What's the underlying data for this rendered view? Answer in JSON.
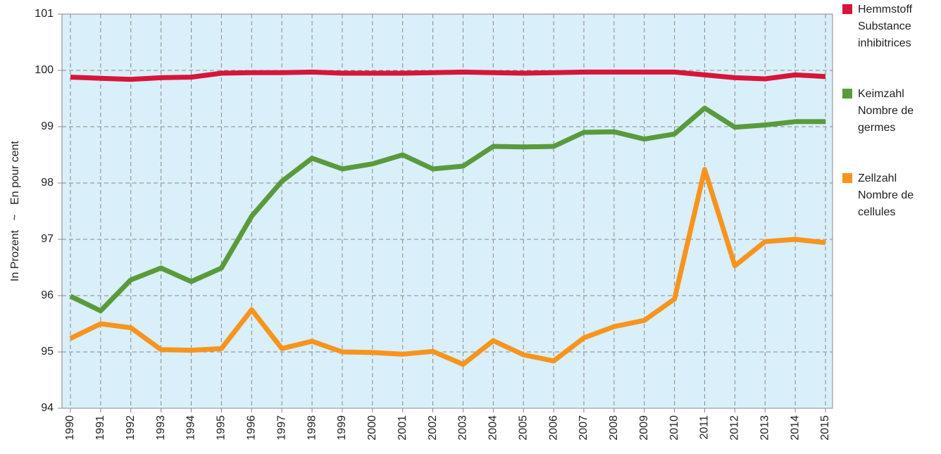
{
  "chart_data": {
    "type": "line",
    "y_label": "In Prozent   ~   En pour cent",
    "categories": [
      "1990",
      "1991",
      "1992",
      "1993",
      "1994",
      "1995",
      "1996",
      "1997",
      "1998",
      "1999",
      "2000",
      "2001",
      "2002",
      "2003",
      "2004",
      "2005",
      "2006",
      "2007",
      "2008",
      "2009",
      "2010",
      "2011",
      "2012",
      "2013",
      "2014",
      "2015"
    ],
    "ylim": [
      94,
      101
    ],
    "yticks": [
      94,
      95,
      96,
      97,
      98,
      99,
      100,
      101
    ],
    "grid": true,
    "background": "#d9eff9",
    "series": [
      {
        "name": "Hemmstoff Substance inhibitrices",
        "color": "#d7153a",
        "values": [
          99.88,
          99.86,
          99.84,
          99.87,
          99.88,
          99.95,
          99.96,
          99.96,
          99.97,
          99.95,
          99.95,
          99.95,
          99.96,
          99.97,
          99.96,
          99.95,
          99.96,
          99.97,
          99.97,
          99.97,
          99.97,
          99.92,
          99.87,
          99.85,
          99.92,
          99.89
        ]
      },
      {
        "name": "Keimzahl Nombre de germes",
        "color": "#5a9a3c",
        "values": [
          95.99,
          95.73,
          96.28,
          96.49,
          96.25,
          96.49,
          97.41,
          98.03,
          98.44,
          98.25,
          98.34,
          98.5,
          98.25,
          98.3,
          98.65,
          98.64,
          98.65,
          98.9,
          98.91,
          98.78,
          98.87,
          99.33,
          98.99,
          99.03,
          99.09,
          99.09
        ]
      },
      {
        "name": "Zellzahl Nombre de cellules",
        "color": "#f7941d",
        "values": [
          95.24,
          95.5,
          95.43,
          95.04,
          95.03,
          95.06,
          95.75,
          95.06,
          95.19,
          95.0,
          94.99,
          94.96,
          95.01,
          94.78,
          95.2,
          94.95,
          94.84,
          95.25,
          95.45,
          95.56,
          95.94,
          98.24,
          96.53,
          96.96,
          97.0,
          96.94
        ]
      }
    ]
  }
}
